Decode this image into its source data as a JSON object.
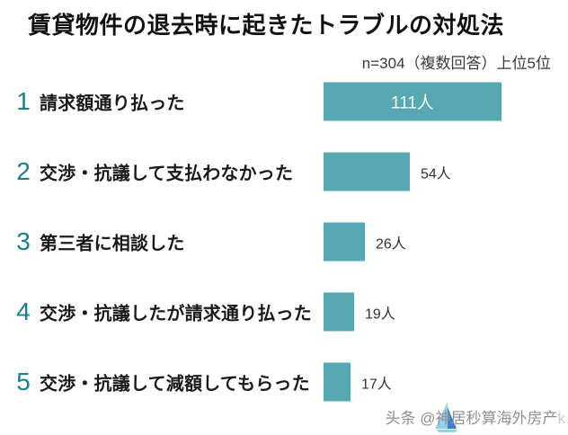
{
  "header": {
    "title": "賃貸物件の退去時に起きたトラブルの対処法",
    "note": "n=304（複数回答）上位5位"
  },
  "chart_data": {
    "type": "bar",
    "orientation": "horizontal",
    "title": "賃貸物件の退去時に起きたトラブルの対処法",
    "note": "n=304（複数回答）上位5位",
    "sample_size": 304,
    "categories": [
      "請求額通り払った",
      "交渉・抗議して支払わなかった",
      "第三者に相談した",
      "交渉・抗議したが請求通り払った",
      "交渉・抗議して減額してもらった"
    ],
    "ranks": [
      1,
      2,
      3,
      4,
      5
    ],
    "values": [
      111,
      54,
      26,
      19,
      17
    ],
    "value_labels": [
      "111人",
      "54人",
      "26人",
      "19人",
      "17人"
    ],
    "value_label_position": [
      "inside",
      "outside",
      "outside",
      "outside",
      "outside"
    ],
    "unit": "人",
    "xlim": [
      0,
      111
    ],
    "grid": false,
    "legend": false,
    "bar_color": "#56a9b2",
    "rank_color": "#17808a",
    "inside_label_color": "#ffffff",
    "outside_label_color": "#333333"
  },
  "watermark": {
    "prefix": "头条 @",
    "name": "神居秒算海外房产",
    "faint_suffix": "k",
    "text_color": "#8f8f8f",
    "logo": "sail-logo",
    "logo_colors": [
      "#8fcdee",
      "#2f7fc1"
    ]
  }
}
